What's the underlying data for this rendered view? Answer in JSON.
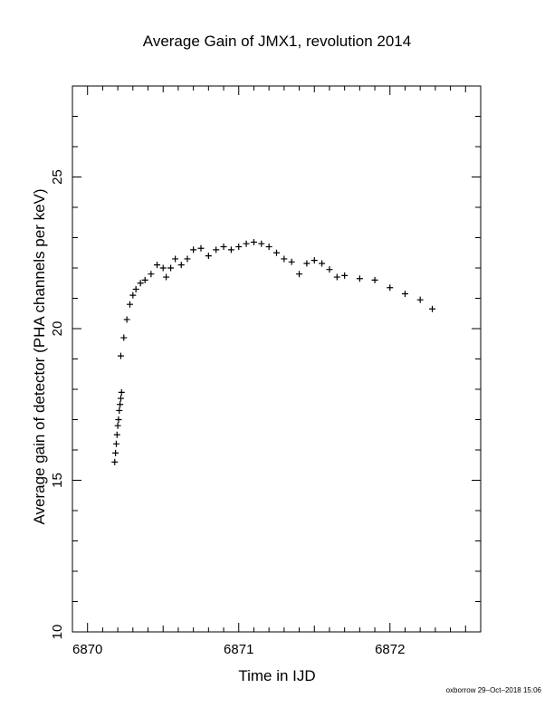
{
  "chart_data": {
    "type": "scatter",
    "title": "Average Gain of JMX1, revolution 2014",
    "xlabel": "Time in IJD",
    "ylabel": "Average gain of detector (PHA channels per keV)",
    "xlim": [
      6869.9,
      6872.6
    ],
    "ylim": [
      10,
      28
    ],
    "xticks": [
      {
        "value": 6870,
        "label": "6870"
      },
      {
        "value": 6871,
        "label": "6871"
      },
      {
        "value": 6872,
        "label": "6872"
      }
    ],
    "yticks": [
      {
        "value": 10,
        "label": "10"
      },
      {
        "value": 15,
        "label": "15"
      },
      {
        "value": 20,
        "label": "20"
      },
      {
        "value": 25,
        "label": "25"
      }
    ],
    "marker": "+",
    "grid": false,
    "series": [
      {
        "x": [
          6870.18,
          6870.185,
          6870.19,
          6870.195,
          6870.2,
          6870.205,
          6870.21,
          6870.215,
          6870.22,
          6870.225,
          6870.22,
          6870.24,
          6870.26,
          6870.28,
          6870.3,
          6870.32,
          6870.35,
          6870.38,
          6870.42,
          6870.46,
          6870.5,
          6870.52,
          6870.55,
          6870.58,
          6870.62,
          6870.66,
          6870.7,
          6870.75,
          6870.8,
          6870.85,
          6870.9,
          6870.95,
          6871.0,
          6871.05,
          6871.1,
          6871.15,
          6871.2,
          6871.25,
          6871.3,
          6871.35,
          6871.4,
          6871.45,
          6871.5,
          6871.55,
          6871.6,
          6871.65,
          6871.7,
          6871.8,
          6871.9,
          6872.0,
          6872.1,
          6872.2,
          6872.28
        ],
        "y": [
          15.6,
          15.9,
          16.2,
          16.5,
          16.8,
          17.0,
          17.3,
          17.5,
          17.7,
          17.9,
          19.1,
          19.7,
          20.3,
          20.8,
          21.1,
          21.3,
          21.5,
          21.6,
          21.8,
          22.1,
          22.0,
          21.7,
          22.0,
          22.3,
          22.1,
          22.3,
          22.6,
          22.65,
          22.4,
          22.6,
          22.7,
          22.6,
          22.7,
          22.8,
          22.85,
          22.8,
          22.7,
          22.5,
          22.3,
          22.2,
          21.8,
          22.15,
          22.25,
          22.15,
          21.95,
          21.7,
          21.75,
          21.65,
          21.6,
          21.35,
          21.15,
          20.95,
          20.65
        ]
      }
    ]
  },
  "footer": {
    "stamp": "oxborrow 29–Oct–2018 15:06"
  }
}
